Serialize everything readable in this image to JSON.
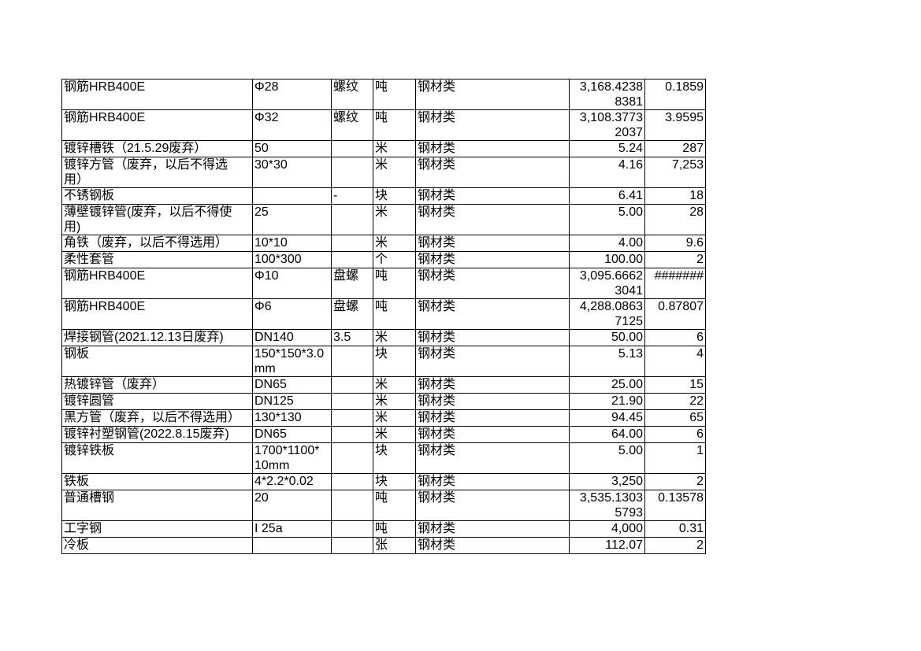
{
  "table": {
    "description_category": "钢材类",
    "overflow_marker": "#######",
    "text_color": "#000000",
    "grid_color": "#000000",
    "background_color": "#ffffff",
    "rows": [
      [
        "钢筋HRB400E",
        "Φ28",
        "螺纹",
        "吨",
        "钢材类",
        "3,168.4238\n8381",
        "0.1859"
      ],
      [
        "钢筋HRB400E",
        "Φ32",
        "螺纹",
        "吨",
        "钢材类",
        "3,108.3773\n2037",
        "3.9595"
      ],
      [
        "镀锌槽铁（21.5.29废弃）",
        "50",
        "",
        "米",
        "钢材类",
        "5.24",
        "287"
      ],
      [
        "镀锌方管（废弃，以后不得选\n用）",
        "30*30",
        "",
        "米",
        "钢材类",
        "4.16",
        "7,253"
      ],
      [
        "不锈钢板",
        "",
        "-",
        "块",
        "钢材类",
        "6.41",
        "18"
      ],
      [
        "薄壁镀锌管(废弃，以后不得使\n用)",
        "25",
        "",
        "米",
        "钢材类",
        "5.00",
        "28"
      ],
      [
        "角铁（废弃，以后不得选用）",
        "10*10",
        "",
        "米",
        "钢材类",
        "4.00",
        "9.6"
      ],
      [
        "柔性套管",
        "100*300",
        "",
        "个",
        "钢材类",
        "100.00",
        "2"
      ],
      [
        "钢筋HRB400E",
        "Φ10",
        "盘螺",
        "吨",
        "钢材类",
        "3,095.6662\n3041",
        "#######"
      ],
      [
        "钢筋HRB400E",
        "Φ6",
        "盘螺",
        "吨",
        "钢材类",
        "4,288.0863\n7125",
        "0.87807"
      ],
      [
        "焊接钢管(2021.12.13日废弃)",
        "DN140",
        "3.5",
        "米",
        "钢材类",
        "50.00",
        "6"
      ],
      [
        "钢板",
        "150*150*3.0\nmm",
        "",
        "块",
        "钢材类",
        "5.13",
        "4"
      ],
      [
        "热镀锌管（废弃）",
        "DN65",
        "",
        "米",
        "钢材类",
        "25.00",
        "15"
      ],
      [
        "镀锌圆管",
        "DN125",
        "",
        "米",
        "钢材类",
        "21.90",
        "22"
      ],
      [
        "黑方管（废弃，以后不得选用）",
        "130*130",
        "",
        "米",
        "钢材类",
        "94.45",
        "65"
      ],
      [
        "镀锌衬塑钢管(2022.8.15废弃)",
        "DN65",
        "",
        "米",
        "钢材类",
        "64.00",
        "6"
      ],
      [
        "镀锌铁板",
        "1700*1100*\n10mm",
        "",
        "块",
        "钢材类",
        "5.00",
        "1"
      ],
      [
        "铁板",
        "4*2.2*0.02",
        "",
        "块",
        "钢材类",
        "3,250",
        "2"
      ],
      [
        "普通槽钢",
        "20",
        "",
        "吨",
        "钢材类",
        "3,535.1303\n5793",
        "0.13578"
      ],
      [
        "工字钢",
        "I 25a",
        "",
        "吨",
        "钢材类",
        "4,000",
        "0.31"
      ],
      [
        "冷板",
        "",
        "",
        "张",
        "钢材类",
        "112.07",
        "2"
      ]
    ]
  }
}
